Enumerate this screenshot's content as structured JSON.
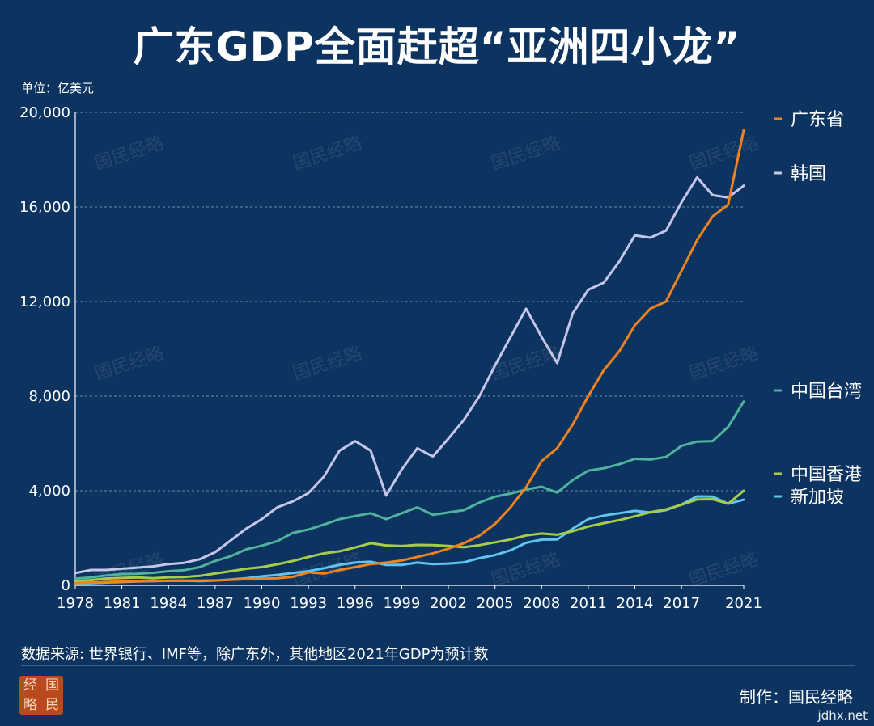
{
  "title": "广东GDP全面赶超“亚洲四小龙”",
  "unit_label": "单位：亿美元",
  "source_note": "数据来源: 世界银行、IMF等，除广东外，其他地区2021年GDP为预计数",
  "credit": "制作：国民经略",
  "site": "jdhx.net",
  "watermark": "国民经略",
  "logo_chars": [
    "经",
    "国",
    "略",
    "民"
  ],
  "chart_data": {
    "type": "line",
    "title": "广东GDP全面赶超“亚洲四小龙”",
    "ylabel": "单位：亿美元",
    "xlabel": "",
    "ylim": [
      0,
      20000
    ],
    "yticks": [
      0,
      4000,
      8000,
      12000,
      16000,
      20000
    ],
    "ytick_labels": [
      "0",
      "4,000",
      "8,000",
      "12,000",
      "16,000",
      "20,000"
    ],
    "xticks": [
      1978,
      1981,
      1984,
      1987,
      1990,
      1993,
      1996,
      1999,
      2002,
      2005,
      2008,
      2011,
      2014,
      2017,
      2021
    ],
    "xlim": [
      1978,
      2021
    ],
    "grid": "horizontal dashed",
    "legend_placement": "right, at line ends",
    "x": [
      1978,
      1979,
      1980,
      1981,
      1982,
      1983,
      1984,
      1985,
      1986,
      1987,
      1988,
      1989,
      1990,
      1991,
      1992,
      1993,
      1994,
      1995,
      1996,
      1997,
      1998,
      1999,
      2000,
      2001,
      2002,
      2003,
      2004,
      2005,
      2006,
      2007,
      2008,
      2009,
      2010,
      2011,
      2012,
      2013,
      2014,
      2015,
      2016,
      2017,
      2018,
      2019,
      2020,
      2021
    ],
    "series": [
      {
        "name": "广东省",
        "color": "#f0831e",
        "values": [
          100,
          120,
          140,
          160,
          170,
          180,
          190,
          200,
          200,
          210,
          230,
          260,
          280,
          300,
          360,
          550,
          500,
          650,
          770,
          900,
          960,
          1050,
          1200,
          1350,
          1550,
          1780,
          2100,
          2600,
          3300,
          4150,
          5250,
          5800,
          6800,
          8000,
          9100,
          9900,
          11000,
          11700,
          12000,
          13300,
          14600,
          15600,
          16100,
          19250
        ]
      },
      {
        "name": "韩国",
        "color": "#c5c6ea",
        "values": [
          520,
          650,
          650,
          700,
          750,
          800,
          900,
          950,
          1100,
          1400,
          1900,
          2400,
          2800,
          3300,
          3550,
          3900,
          4600,
          5700,
          6100,
          5700,
          3800,
          4900,
          5800,
          5450,
          6200,
          7000,
          8000,
          9300,
          10500,
          11700,
          10500,
          9400,
          11500,
          12500,
          12800,
          13700,
          14800,
          14700,
          15000,
          16200,
          17250,
          16500,
          16400,
          16900
        ]
      },
      {
        "name": "中国台湾",
        "color": "#4fb39d",
        "values": [
          280,
          330,
          420,
          480,
          490,
          530,
          600,
          640,
          770,
          1030,
          1230,
          1520,
          1680,
          1870,
          2220,
          2360,
          2570,
          2800,
          2930,
          3050,
          2800,
          3050,
          3300,
          2980,
          3080,
          3180,
          3500,
          3750,
          3880,
          4050,
          4170,
          3920,
          4450,
          4850,
          4950,
          5120,
          5350,
          5320,
          5430,
          5900,
          6080,
          6100,
          6700,
          7770
        ]
      },
      {
        "name": "中国香港",
        "color": "#a7cc4a",
        "values": [
          180,
          220,
          290,
          310,
          330,
          300,
          340,
          350,
          400,
          500,
          600,
          700,
          770,
          890,
          1030,
          1200,
          1350,
          1440,
          1600,
          1780,
          1690,
          1660,
          1710,
          1700,
          1670,
          1610,
          1700,
          1820,
          1940,
          2110,
          2190,
          2140,
          2290,
          2490,
          2630,
          2760,
          2920,
          3090,
          3210,
          3410,
          3630,
          3640,
          3450,
          4000
        ]
      },
      {
        "name": "新加坡",
        "color": "#5fc4f0",
        "values": [
          80,
          90,
          120,
          140,
          160,
          180,
          190,
          190,
          180,
          200,
          250,
          300,
          380,
          440,
          520,
          600,
          720,
          870,
          960,
          1000,
          860,
          860,
          960,
          900,
          920,
          970,
          1150,
          1280,
          1480,
          1800,
          1930,
          1940,
          2400,
          2800,
          2950,
          3050,
          3150,
          3080,
          3180,
          3420,
          3760,
          3750,
          3450,
          3620
        ]
      }
    ]
  }
}
